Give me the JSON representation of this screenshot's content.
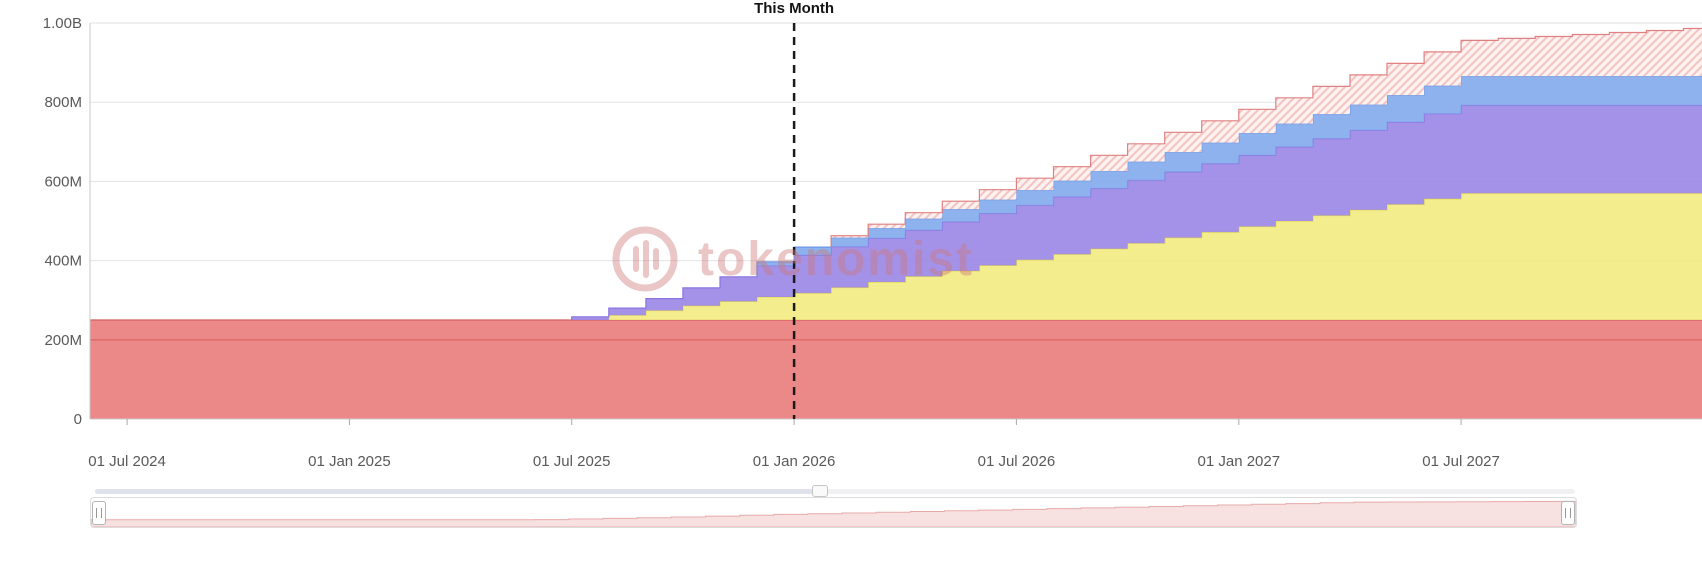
{
  "page": {
    "background_color": "#ffffff"
  },
  "watermark": {
    "text": "tokenomist",
    "color": "rgba(206,120,120,0.42)"
  },
  "navigator": {
    "fill": "#f8e1e1",
    "stroke": "#e7aaaa",
    "window": "full-range"
  },
  "chart_data": {
    "type": "area",
    "variant": "stacked-step-unlock-schedule",
    "grid": true,
    "legend": "none",
    "value_unit": "millions of tokens",
    "ylim": [
      0,
      1000
    ],
    "xlim_months": [
      "Jun 2024",
      "Jan 2028"
    ],
    "marker": {
      "index": 18,
      "label": "This Month",
      "style": "dashed-vertical"
    },
    "x": [
      "Jul 2024",
      "Aug 2024",
      "Sep 2024",
      "Oct 2024",
      "Nov 2024",
      "Dec 2024",
      "Jan 2025",
      "Feb 2025",
      "Mar 2025",
      "Apr 2025",
      "May 2025",
      "Jun 2025",
      "Jul 2025",
      "Aug 2025",
      "Sep 2025",
      "Oct 2025",
      "Nov 2025",
      "Dec 2025",
      "Jan 2026",
      "Feb 2026",
      "Mar 2026",
      "Apr 2026",
      "May 2026",
      "Jun 2026",
      "Jul 2026",
      "Aug 2026",
      "Sep 2026",
      "Oct 2026",
      "Nov 2026",
      "Dec 2026",
      "Jan 2027",
      "Feb 2027",
      "Mar 2027",
      "Apr 2027",
      "May 2027",
      "Jun 2027",
      "Jul 2027",
      "Aug 2027",
      "Sep 2027",
      "Oct 2027",
      "Nov 2027",
      "Dec 2027",
      "Jan 2028"
    ],
    "x_ticks": [
      {
        "index": 0,
        "label": "01 Jul 2024"
      },
      {
        "index": 6,
        "label": "01 Jan 2025"
      },
      {
        "index": 12,
        "label": "01 Jul 2025"
      },
      {
        "index": 18,
        "label": "01 Jan 2026"
      },
      {
        "index": 24,
        "label": "01 Jul 2026"
      },
      {
        "index": 30,
        "label": "01 Jan 2027"
      },
      {
        "index": 36,
        "label": "01 Jul 2027"
      }
    ],
    "y_ticks": [
      {
        "value": 0,
        "label": "0"
      },
      {
        "value": 200,
        "label": "200M"
      },
      {
        "value": 400,
        "label": "400M"
      },
      {
        "value": 600,
        "label": "600M"
      },
      {
        "value": 800,
        "label": "800M"
      },
      {
        "value": 1000,
        "label": "1.00B"
      }
    ],
    "series": [
      {
        "name": "red-area-lower",
        "fill": "#e66a6a",
        "stroke": "#d55e5e",
        "opacity": 0.8,
        "values": [
          200,
          200,
          200,
          200,
          200,
          200,
          200,
          200,
          200,
          200,
          200,
          200,
          200,
          200,
          200,
          200,
          200,
          200,
          200,
          200,
          200,
          200,
          200,
          200,
          200,
          200,
          200,
          200,
          200,
          200,
          200,
          200,
          200,
          200,
          200,
          200,
          200,
          200,
          200,
          200,
          200,
          200,
          200
        ]
      },
      {
        "name": "red-area-upper",
        "fill": "#e66a6a",
        "stroke": "#d55e5e",
        "opacity": 0.8,
        "values": [
          50,
          50,
          50,
          50,
          50,
          50,
          50,
          50,
          50,
          50,
          50,
          50,
          50,
          50,
          50,
          50,
          50,
          50,
          50,
          50,
          50,
          50,
          50,
          50,
          50,
          50,
          50,
          50,
          50,
          50,
          50,
          50,
          50,
          50,
          50,
          50,
          50,
          50,
          50,
          50,
          50,
          50,
          50
        ]
      },
      {
        "name": "yellow-area",
        "fill": "#f1ea7a",
        "stroke": "#e2d855",
        "opacity": 0.85,
        "values": [
          0,
          0,
          0,
          0,
          0,
          0,
          0,
          0,
          0,
          0,
          0,
          0,
          0,
          12,
          24,
          36,
          47,
          58,
          68,
          82,
          96,
          110,
          124,
          138,
          152,
          166,
          180,
          194,
          208,
          222,
          236,
          250,
          264,
          278,
          292,
          306,
          320,
          320,
          320,
          320,
          320,
          320,
          320
        ]
      },
      {
        "name": "purple-area",
        "fill": "#9a86e6",
        "stroke": "#8a74e0",
        "opacity": 0.9,
        "values": [
          0,
          0,
          0,
          0,
          0,
          0,
          0,
          0,
          0,
          0,
          0,
          0,
          8,
          18,
          30,
          45,
          62,
          79,
          96,
          103,
          110,
          117,
          124,
          131,
          138,
          145,
          152,
          159,
          166,
          173,
          180,
          187,
          194,
          201,
          208,
          215,
          222,
          222,
          222,
          222,
          222,
          222,
          222
        ]
      },
      {
        "name": "blue-area",
        "fill": "#82aaec",
        "stroke": "#6f97e6",
        "opacity": 0.9,
        "values": [
          0,
          0,
          0,
          0,
          0,
          0,
          0,
          0,
          0,
          0,
          0,
          0,
          0,
          0,
          0,
          0,
          0,
          10,
          20,
          23,
          26,
          29,
          32,
          35,
          38,
          41,
          44,
          47,
          50,
          53,
          56,
          59,
          62,
          65,
          68,
          71,
          74,
          74,
          74,
          74,
          74,
          74,
          74
        ]
      },
      {
        "name": "pink-hatched-area",
        "fill": "#fdf2f0",
        "stroke": "#e08080",
        "opacity": 1,
        "hatch": true,
        "values": [
          0,
          0,
          0,
          0,
          0,
          0,
          0,
          0,
          0,
          0,
          0,
          0,
          0,
          0,
          0,
          0,
          0,
          0,
          0,
          5,
          10,
          15,
          20,
          25,
          30,
          35,
          40,
          45,
          50,
          55,
          60,
          65,
          70,
          75,
          80,
          85,
          90,
          95,
          100,
          105,
          110,
          115,
          120
        ]
      }
    ]
  }
}
